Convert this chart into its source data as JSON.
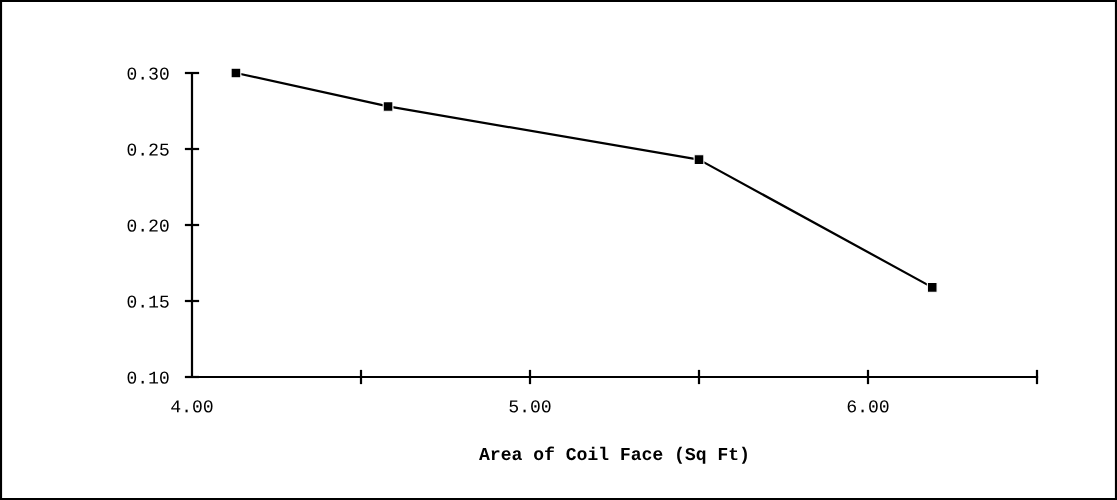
{
  "chart_data": {
    "type": "line",
    "xlabel": "Area of Coil Face (Sq Ft)",
    "x": [
      4.13,
      4.58,
      5.5,
      6.19
    ],
    "series": [
      {
        "color": "#000000",
        "values": [
          0.3,
          0.278,
          0.243,
          0.159
        ]
      }
    ],
    "xlim": [
      4.0,
      6.5
    ],
    "xticks": [
      {
        "value": 4.0,
        "label": "4.00"
      },
      {
        "value": 4.5,
        "label": null
      },
      {
        "value": 5.0,
        "label": "5.00"
      },
      {
        "value": 5.5,
        "label": null
      },
      {
        "value": 6.0,
        "label": "6.00"
      },
      {
        "value": 6.5,
        "label": null
      }
    ],
    "ylim": [
      0.1,
      0.3
    ],
    "yticks": [
      {
        "value": 0.1,
        "label": "0.10"
      },
      {
        "value": 0.15,
        "label": "0.15"
      },
      {
        "value": 0.2,
        "label": "0.20"
      },
      {
        "value": 0.25,
        "label": "0.25"
      },
      {
        "value": 0.3,
        "label": "0.30"
      }
    ],
    "marker": "square",
    "line_style": "solid",
    "grid": false,
    "legend": false
  }
}
